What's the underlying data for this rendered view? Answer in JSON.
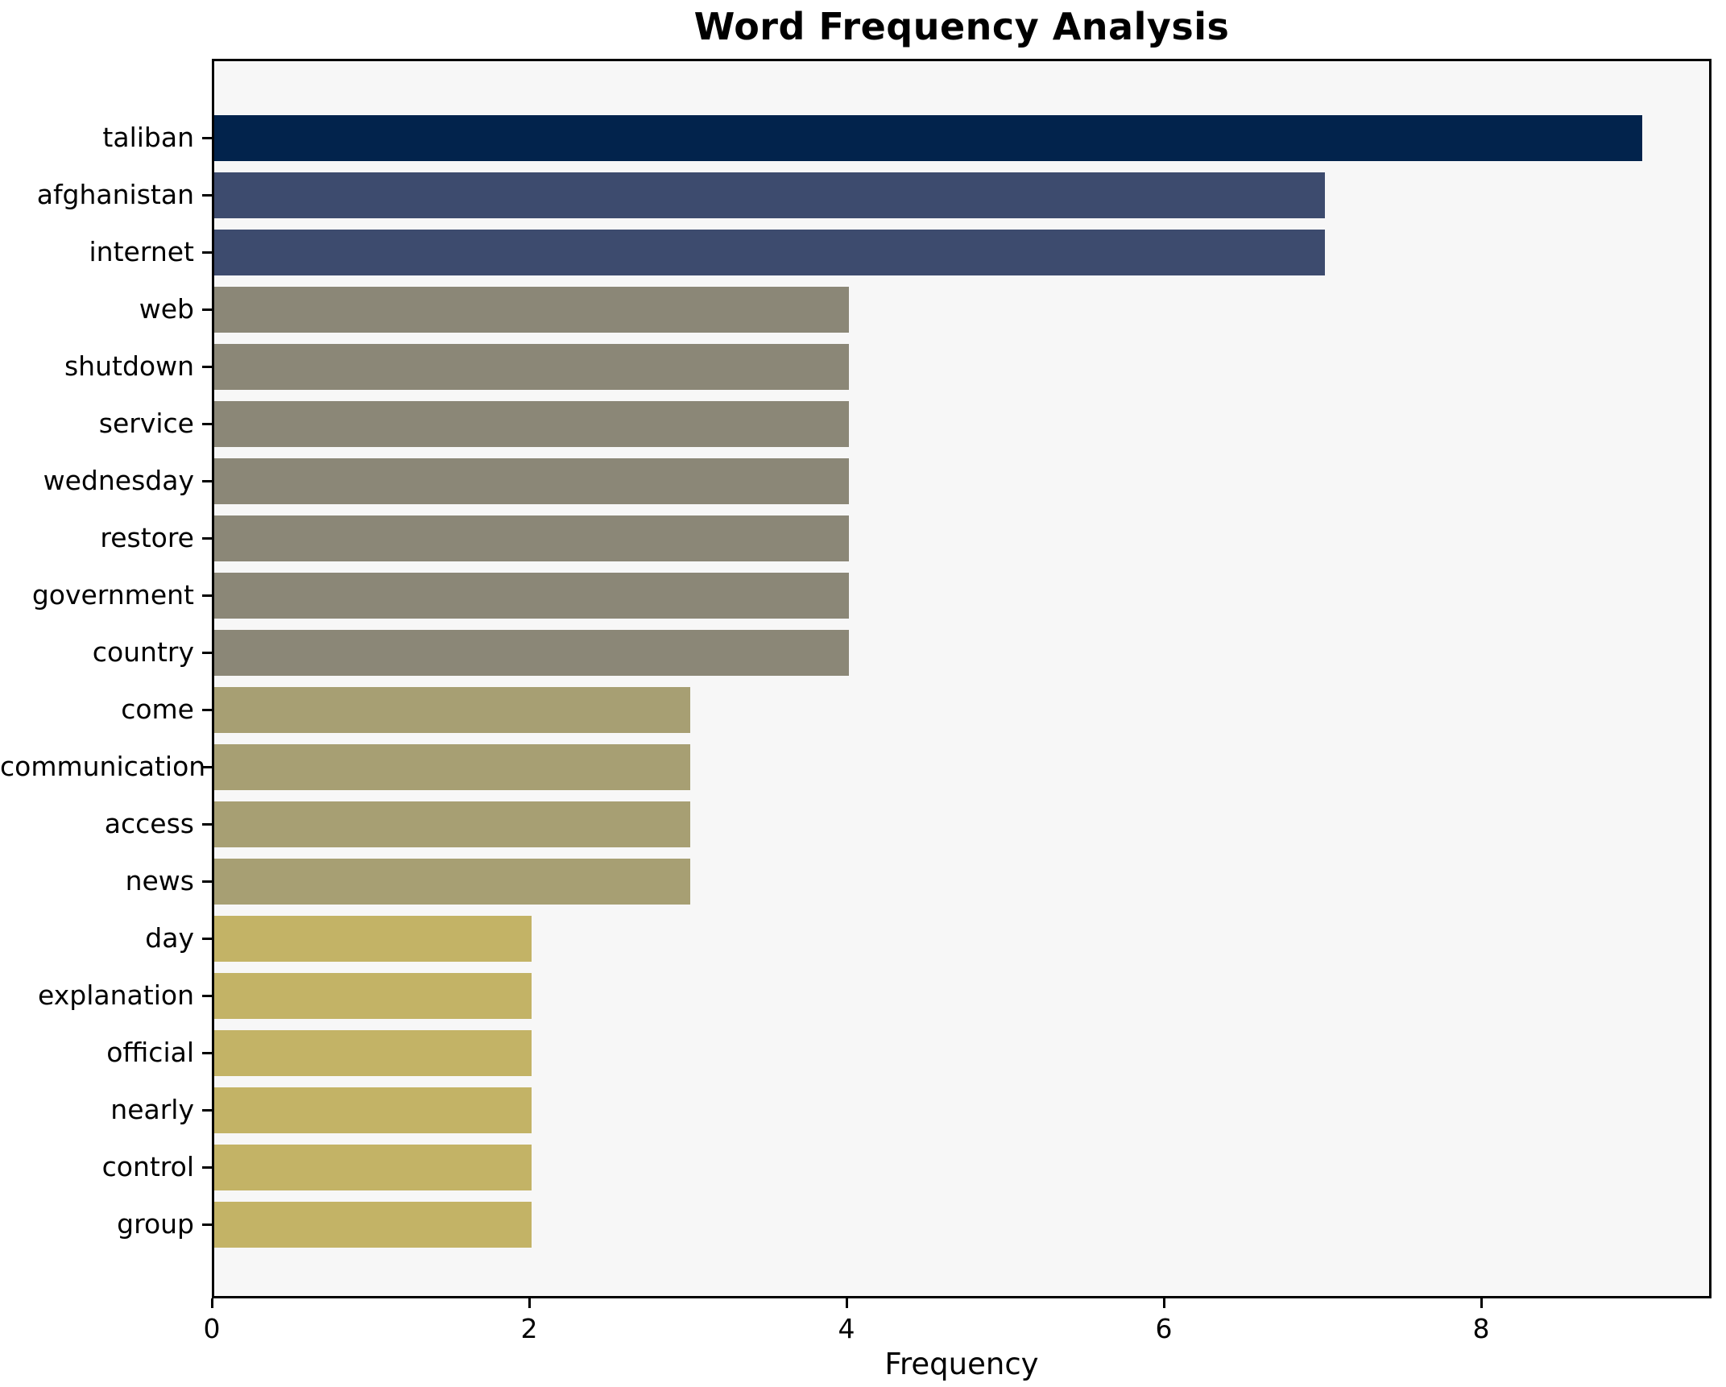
{
  "chart_data": {
    "type": "bar",
    "orientation": "horizontal",
    "title": "Word Frequency Analysis",
    "xlabel": "Frequency",
    "ylabel": "",
    "categories": [
      "taliban",
      "afghanistan",
      "internet",
      "web",
      "shutdown",
      "service",
      "wednesday",
      "restore",
      "government",
      "country",
      "come",
      "communication",
      "access",
      "news",
      "day",
      "explanation",
      "official",
      "nearly",
      "control",
      "group"
    ],
    "values": [
      9,
      7,
      7,
      4,
      4,
      4,
      4,
      4,
      4,
      4,
      3,
      3,
      3,
      3,
      2,
      2,
      2,
      2,
      2,
      2
    ],
    "xticks": [
      0,
      2,
      4,
      6,
      8
    ],
    "xlim": [
      0,
      9.45
    ],
    "grid": false,
    "legend": null,
    "colors": {
      "bar_by_value": {
        "9": "#02234c",
        "7": "#3d4b6e",
        "4": "#8b8777",
        "3": "#a79f73",
        "2": "#c3b366"
      },
      "plot_background": "#f7f7f7",
      "figure_background": "#ffffff",
      "spine": "#000000",
      "text": "#000000"
    }
  }
}
